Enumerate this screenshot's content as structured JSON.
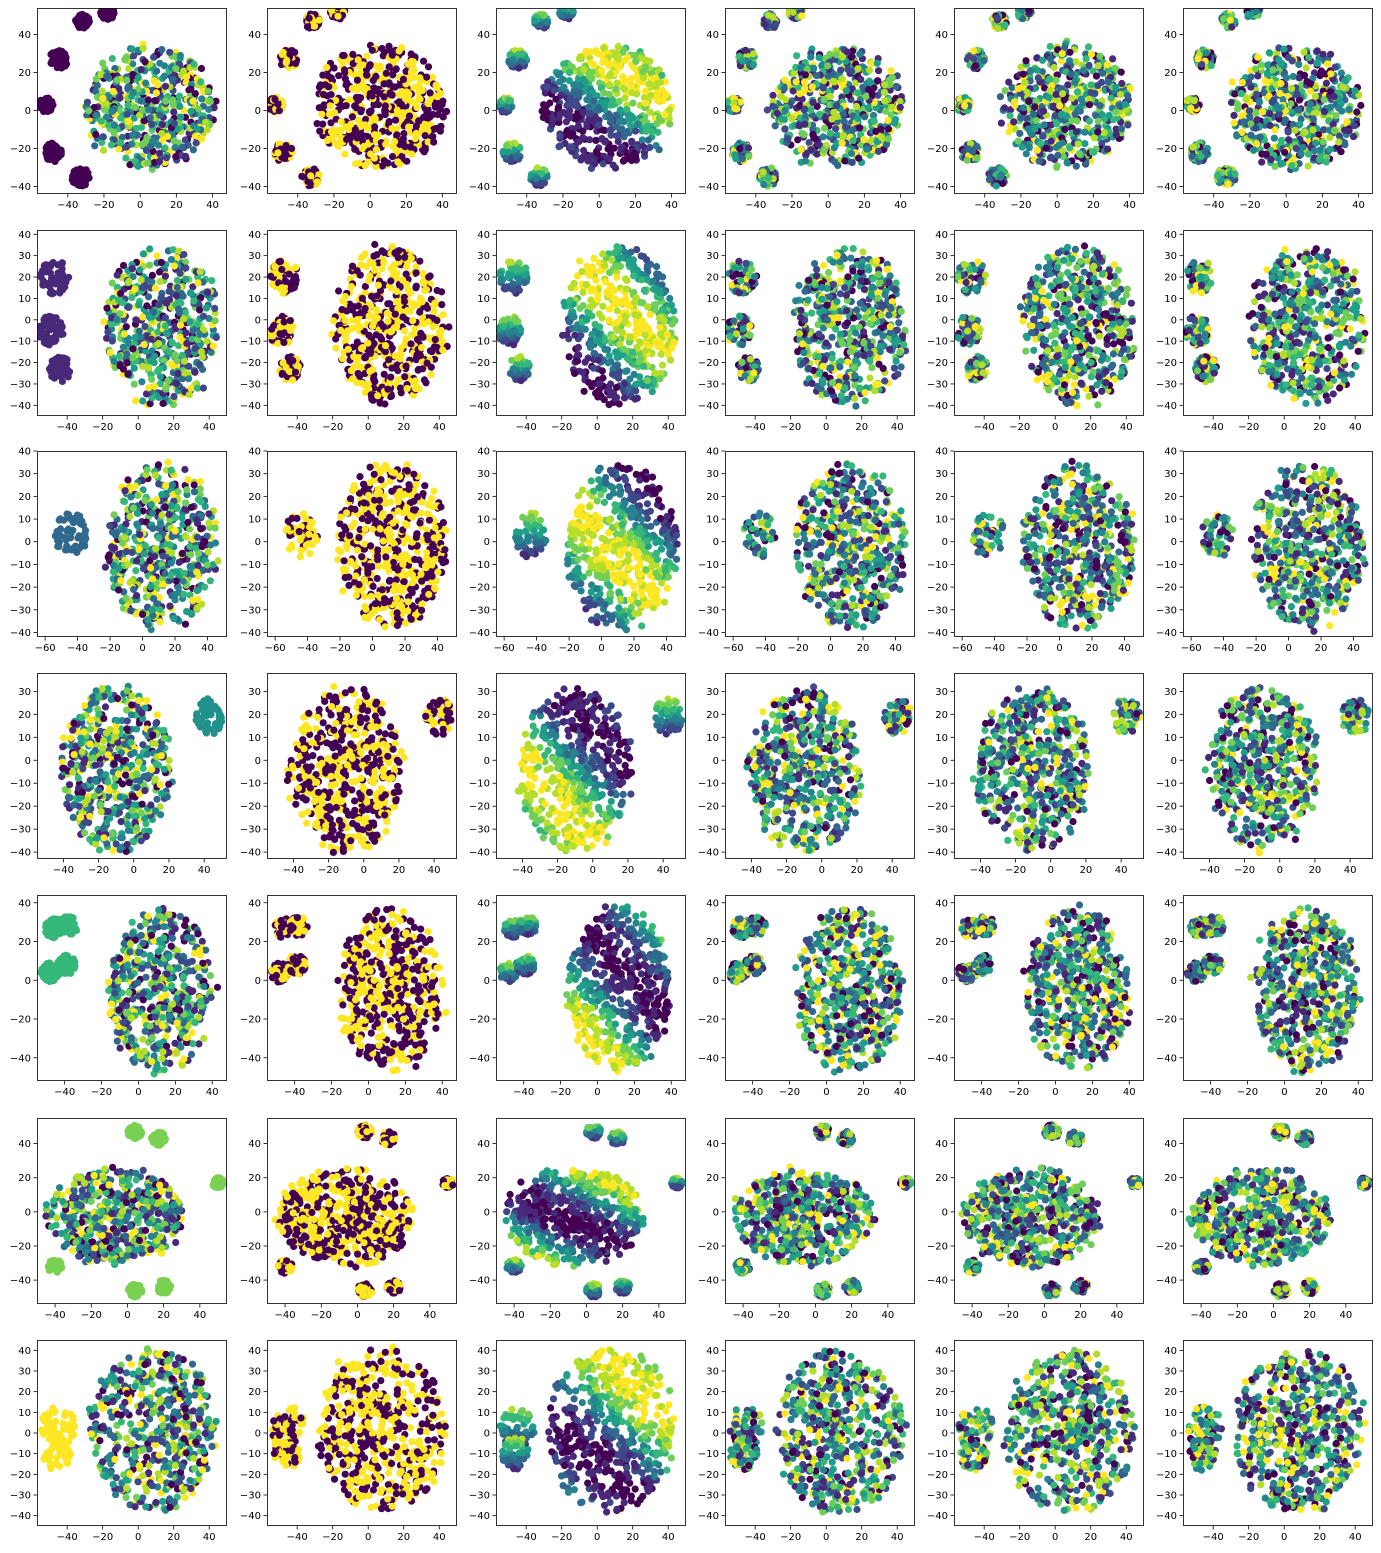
{
  "chart_data": [
    {
      "type": "scatter",
      "row": 1,
      "panel": 1,
      "xlim": [
        -57,
        48
      ],
      "ylim": [
        -44,
        54
      ],
      "xticks": [
        -40,
        -20,
        0,
        20,
        40
      ],
      "yticks": [
        -40,
        -20,
        0,
        20,
        40
      ],
      "colors": "viridis-mixed"
    },
    {
      "type": "scatter",
      "row": 1,
      "panel": 2,
      "xlim": [
        -57,
        48
      ],
      "ylim": [
        -44,
        54
      ],
      "xticks": [
        -40,
        -20,
        0,
        20,
        40
      ],
      "yticks": [
        -40,
        -20,
        0,
        20,
        40
      ],
      "colors": "binary"
    },
    {
      "type": "scatter",
      "row": 1,
      "panel": 3,
      "xlim": [
        -57,
        48
      ],
      "ylim": [
        -44,
        54
      ],
      "xticks": [
        -40,
        -20,
        0,
        20,
        40
      ],
      "yticks": [
        -40,
        -20,
        0,
        20,
        40
      ],
      "colors": "viridis-gradient"
    },
    {
      "type": "scatter",
      "row": 1,
      "panel": 4,
      "xlim": [
        -57,
        48
      ],
      "ylim": [
        -44,
        54
      ],
      "xticks": [
        -40,
        -20,
        0,
        20,
        40
      ],
      "yticks": [
        -40,
        -20,
        0,
        20,
        40
      ],
      "colors": "viridis-mixed"
    },
    {
      "type": "scatter",
      "row": 1,
      "panel": 5,
      "xlim": [
        -57,
        48
      ],
      "ylim": [
        -44,
        54
      ],
      "xticks": [
        -40,
        -20,
        0,
        20,
        40
      ],
      "yticks": [
        -40,
        -20,
        0,
        20,
        40
      ],
      "colors": "viridis-mixed"
    },
    {
      "type": "scatter",
      "row": 1,
      "panel": 6,
      "xlim": [
        -57,
        48
      ],
      "ylim": [
        -44,
        54
      ],
      "xticks": [
        -40,
        -20,
        0,
        20,
        40
      ],
      "yticks": [
        -40,
        -20,
        0,
        20,
        40
      ],
      "colors": "viridis-mixed"
    },
    {
      "type": "scatter",
      "row": 2,
      "panel": 1,
      "xlim": [
        -57,
        50
      ],
      "ylim": [
        -45,
        42
      ],
      "xticks": [
        -40,
        -20,
        0,
        20,
        40
      ],
      "yticks": [
        -40,
        -30,
        -20,
        -10,
        0,
        10,
        20,
        30,
        40
      ],
      "colors": "viridis-mixed"
    },
    {
      "type": "scatter",
      "row": 2,
      "panel": 2,
      "xlim": [
        -57,
        50
      ],
      "ylim": [
        -45,
        42
      ],
      "xticks": [
        -40,
        -20,
        0,
        20,
        40
      ],
      "yticks": [
        -40,
        -30,
        -20,
        -10,
        0,
        10,
        20,
        30,
        40
      ],
      "colors": "binary"
    },
    {
      "type": "scatter",
      "row": 2,
      "panel": 3,
      "xlim": [
        -57,
        50
      ],
      "ylim": [
        -45,
        42
      ],
      "xticks": [
        -40,
        -20,
        0,
        20,
        40
      ],
      "yticks": [
        -40,
        -30,
        -20,
        -10,
        0,
        10,
        20,
        30,
        40
      ],
      "colors": "viridis-gradient"
    },
    {
      "type": "scatter",
      "row": 2,
      "panel": 4,
      "xlim": [
        -57,
        50
      ],
      "ylim": [
        -45,
        42
      ],
      "xticks": [
        -40,
        -20,
        0,
        20,
        40
      ],
      "yticks": [
        -40,
        -30,
        -20,
        -10,
        0,
        10,
        20,
        30,
        40
      ],
      "colors": "viridis-mixed"
    },
    {
      "type": "scatter",
      "row": 2,
      "panel": 5,
      "xlim": [
        -57,
        50
      ],
      "ylim": [
        -45,
        42
      ],
      "xticks": [
        -40,
        -20,
        0,
        20,
        40
      ],
      "yticks": [
        -40,
        -30,
        -20,
        -10,
        0,
        10,
        20,
        30,
        40
      ],
      "colors": "viridis-mixed"
    },
    {
      "type": "scatter",
      "row": 2,
      "panel": 6,
      "xlim": [
        -57,
        50
      ],
      "ylim": [
        -45,
        42
      ],
      "xticks": [
        -40,
        -20,
        0,
        20,
        40
      ],
      "yticks": [
        -40,
        -30,
        -20,
        -10,
        0,
        10,
        20,
        30,
        40
      ],
      "colors": "viridis-mixed"
    },
    {
      "type": "scatter",
      "row": 3,
      "panel": 1,
      "xlim": [
        -65,
        52
      ],
      "ylim": [
        -42,
        40
      ],
      "xticks": [
        -60,
        -40,
        -20,
        0,
        20,
        40
      ],
      "yticks": [
        -40,
        -30,
        -20,
        -10,
        0,
        10,
        20,
        30,
        40
      ],
      "colors": "viridis-mixed"
    },
    {
      "type": "scatter",
      "row": 3,
      "panel": 2,
      "xlim": [
        -65,
        52
      ],
      "ylim": [
        -42,
        40
      ],
      "xticks": [
        -60,
        -40,
        -20,
        0,
        20,
        40
      ],
      "yticks": [
        -40,
        -30,
        -20,
        -10,
        0,
        10,
        20,
        30,
        40
      ],
      "colors": "binary"
    },
    {
      "type": "scatter",
      "row": 3,
      "panel": 3,
      "xlim": [
        -65,
        52
      ],
      "ylim": [
        -42,
        40
      ],
      "xticks": [
        -60,
        -40,
        -20,
        0,
        20,
        40
      ],
      "yticks": [
        -40,
        -30,
        -20,
        -10,
        0,
        10,
        20,
        30,
        40
      ],
      "colors": "viridis-gradient"
    },
    {
      "type": "scatter",
      "row": 3,
      "panel": 4,
      "xlim": [
        -65,
        52
      ],
      "ylim": [
        -42,
        40
      ],
      "xticks": [
        -60,
        -40,
        -20,
        0,
        20,
        40
      ],
      "yticks": [
        -40,
        -30,
        -20,
        -10,
        0,
        10,
        20,
        30,
        40
      ],
      "colors": "viridis-mixed"
    },
    {
      "type": "scatter",
      "row": 3,
      "panel": 5,
      "xlim": [
        -65,
        52
      ],
      "ylim": [
        -42,
        40
      ],
      "xticks": [
        -60,
        -40,
        -20,
        0,
        20,
        40
      ],
      "yticks": [
        -40,
        -30,
        -20,
        -10,
        0,
        10,
        20,
        30,
        40
      ],
      "colors": "viridis-mixed"
    },
    {
      "type": "scatter",
      "row": 3,
      "panel": 6,
      "xlim": [
        -65,
        52
      ],
      "ylim": [
        -42,
        40
      ],
      "xticks": [
        -60,
        -40,
        -20,
        0,
        20,
        40
      ],
      "yticks": [
        -40,
        -30,
        -20,
        -10,
        0,
        10,
        20,
        30,
        40
      ],
      "colors": "viridis-mixed"
    },
    {
      "type": "scatter",
      "row": 4,
      "panel": 1,
      "xlim": [
        -55,
        53
      ],
      "ylim": [
        -43,
        38
      ],
      "xticks": [
        -40,
        -20,
        0,
        20,
        40
      ],
      "yticks": [
        -40,
        -30,
        -20,
        -10,
        0,
        10,
        20,
        30
      ],
      "colors": "viridis-mixed"
    },
    {
      "type": "scatter",
      "row": 4,
      "panel": 2,
      "xlim": [
        -55,
        53
      ],
      "ylim": [
        -43,
        38
      ],
      "xticks": [
        -40,
        -20,
        0,
        20,
        40
      ],
      "yticks": [
        -40,
        -30,
        -20,
        -10,
        0,
        10,
        20,
        30
      ],
      "colors": "binary"
    },
    {
      "type": "scatter",
      "row": 4,
      "panel": 3,
      "xlim": [
        -55,
        53
      ],
      "ylim": [
        -43,
        38
      ],
      "xticks": [
        -40,
        -20,
        0,
        20,
        40
      ],
      "yticks": [
        -40,
        -30,
        -20,
        -10,
        0,
        10,
        20,
        30
      ],
      "colors": "viridis-gradient"
    },
    {
      "type": "scatter",
      "row": 4,
      "panel": 4,
      "xlim": [
        -55,
        53
      ],
      "ylim": [
        -43,
        38
      ],
      "xticks": [
        -40,
        -20,
        0,
        20,
        40
      ],
      "yticks": [
        -40,
        -30,
        -20,
        -10,
        0,
        10,
        20,
        30
      ],
      "colors": "viridis-mixed"
    },
    {
      "type": "scatter",
      "row": 4,
      "panel": 5,
      "xlim": [
        -55,
        53
      ],
      "ylim": [
        -43,
        38
      ],
      "xticks": [
        -40,
        -20,
        0,
        20,
        40
      ],
      "yticks": [
        -40,
        -30,
        -20,
        -10,
        0,
        10,
        20,
        30
      ],
      "colors": "viridis-mixed"
    },
    {
      "type": "scatter",
      "row": 4,
      "panel": 6,
      "xlim": [
        -55,
        53
      ],
      "ylim": [
        -43,
        38
      ],
      "xticks": [
        -40,
        -20,
        0,
        20,
        40
      ],
      "yticks": [
        -40,
        -30,
        -20,
        -10,
        0,
        10,
        20,
        30
      ],
      "colors": "viridis-mixed"
    },
    {
      "type": "scatter",
      "row": 5,
      "panel": 1,
      "xlim": [
        -55,
        48
      ],
      "ylim": [
        -52,
        44
      ],
      "xticks": [
        -40,
        -20,
        0,
        20,
        40
      ],
      "yticks": [
        -40,
        -20,
        0,
        20,
        40
      ],
      "colors": "viridis-mixed"
    },
    {
      "type": "scatter",
      "row": 5,
      "panel": 2,
      "xlim": [
        -55,
        48
      ],
      "ylim": [
        -52,
        44
      ],
      "xticks": [
        -40,
        -20,
        0,
        20,
        40
      ],
      "yticks": [
        -40,
        -20,
        0,
        20,
        40
      ],
      "colors": "binary"
    },
    {
      "type": "scatter",
      "row": 5,
      "panel": 3,
      "xlim": [
        -55,
        48
      ],
      "ylim": [
        -52,
        44
      ],
      "xticks": [
        -40,
        -20,
        0,
        20,
        40
      ],
      "yticks": [
        -40,
        -20,
        0,
        20,
        40
      ],
      "colors": "viridis-gradient"
    },
    {
      "type": "scatter",
      "row": 5,
      "panel": 4,
      "xlim": [
        -55,
        48
      ],
      "ylim": [
        -52,
        44
      ],
      "xticks": [
        -40,
        -20,
        0,
        20,
        40
      ],
      "yticks": [
        -40,
        -20,
        0,
        20,
        40
      ],
      "colors": "viridis-mixed"
    },
    {
      "type": "scatter",
      "row": 5,
      "panel": 5,
      "xlim": [
        -55,
        48
      ],
      "ylim": [
        -52,
        44
      ],
      "xticks": [
        -40,
        -20,
        0,
        20,
        40
      ],
      "yticks": [
        -40,
        -20,
        0,
        20,
        40
      ],
      "colors": "viridis-mixed"
    },
    {
      "type": "scatter",
      "row": 5,
      "panel": 6,
      "xlim": [
        -55,
        48
      ],
      "ylim": [
        -52,
        44
      ],
      "xticks": [
        -40,
        -20,
        0,
        20,
        40
      ],
      "yticks": [
        -40,
        -20,
        0,
        20,
        40
      ],
      "colors": "viridis-mixed"
    },
    {
      "type": "scatter",
      "row": 6,
      "panel": 1,
      "xlim": [
        -50,
        55
      ],
      "ylim": [
        -54,
        55
      ],
      "xticks": [
        -40,
        -20,
        0,
        20,
        40
      ],
      "yticks": [
        -40,
        -20,
        0,
        20,
        40
      ],
      "colors": "viridis-mixed"
    },
    {
      "type": "scatter",
      "row": 6,
      "panel": 2,
      "xlim": [
        -50,
        55
      ],
      "ylim": [
        -54,
        55
      ],
      "xticks": [
        -40,
        -20,
        0,
        20,
        40
      ],
      "yticks": [
        -40,
        -20,
        0,
        20,
        40
      ],
      "colors": "binary"
    },
    {
      "type": "scatter",
      "row": 6,
      "panel": 3,
      "xlim": [
        -50,
        55
      ],
      "ylim": [
        -54,
        55
      ],
      "xticks": [
        -40,
        -20,
        0,
        20,
        40
      ],
      "yticks": [
        -40,
        -20,
        0,
        20,
        40
      ],
      "colors": "viridis-gradient"
    },
    {
      "type": "scatter",
      "row": 6,
      "panel": 4,
      "xlim": [
        -50,
        55
      ],
      "ylim": [
        -54,
        55
      ],
      "xticks": [
        -40,
        -20,
        0,
        20,
        40
      ],
      "yticks": [
        -40,
        -20,
        0,
        20,
        40
      ],
      "colors": "viridis-mixed"
    },
    {
      "type": "scatter",
      "row": 6,
      "panel": 5,
      "xlim": [
        -50,
        55
      ],
      "ylim": [
        -54,
        55
      ],
      "xticks": [
        -40,
        -20,
        0,
        20,
        40
      ],
      "yticks": [
        -40,
        -20,
        0,
        20,
        40
      ],
      "colors": "viridis-mixed"
    },
    {
      "type": "scatter",
      "row": 6,
      "panel": 6,
      "xlim": [
        -50,
        55
      ],
      "ylim": [
        -54,
        55
      ],
      "xticks": [
        -40,
        -20,
        0,
        20,
        40
      ],
      "yticks": [
        -40,
        -20,
        0,
        20,
        40
      ],
      "colors": "viridis-mixed"
    },
    {
      "type": "scatter",
      "row": 7,
      "panel": 1,
      "xlim": [
        -57,
        50
      ],
      "ylim": [
        -45,
        45
      ],
      "xticks": [
        -40,
        -20,
        0,
        20,
        40
      ],
      "yticks": [
        -40,
        -30,
        -20,
        -10,
        0,
        10,
        20,
        30,
        40
      ],
      "colors": "viridis-mixed"
    },
    {
      "type": "scatter",
      "row": 7,
      "panel": 2,
      "xlim": [
        -57,
        50
      ],
      "ylim": [
        -45,
        45
      ],
      "xticks": [
        -40,
        -20,
        0,
        20,
        40
      ],
      "yticks": [
        -40,
        -30,
        -20,
        -10,
        0,
        10,
        20,
        30,
        40
      ],
      "colors": "binary"
    },
    {
      "type": "scatter",
      "row": 7,
      "panel": 3,
      "xlim": [
        -57,
        50
      ],
      "ylim": [
        -45,
        45
      ],
      "xticks": [
        -40,
        -20,
        0,
        20,
        40
      ],
      "yticks": [
        -40,
        -30,
        -20,
        -10,
        0,
        10,
        20,
        30,
        40
      ],
      "colors": "viridis-gradient"
    },
    {
      "type": "scatter",
      "row": 7,
      "panel": 4,
      "xlim": [
        -57,
        50
      ],
      "ylim": [
        -45,
        45
      ],
      "xticks": [
        -40,
        -20,
        0,
        20,
        40
      ],
      "yticks": [
        -40,
        -30,
        -20,
        -10,
        0,
        10,
        20,
        30,
        40
      ],
      "colors": "viridis-mixed"
    },
    {
      "type": "scatter",
      "row": 7,
      "panel": 5,
      "xlim": [
        -57,
        50
      ],
      "ylim": [
        -45,
        45
      ],
      "xticks": [
        -40,
        -20,
        0,
        20,
        40
      ],
      "yticks": [
        -40,
        -30,
        -20,
        -10,
        0,
        10,
        20,
        30,
        40
      ],
      "colors": "viridis-mixed"
    },
    {
      "type": "scatter",
      "row": 7,
      "panel": 6,
      "xlim": [
        -57,
        50
      ],
      "ylim": [
        -45,
        45
      ],
      "xticks": [
        -40,
        -20,
        0,
        20,
        40
      ],
      "yticks": [
        -40,
        -30,
        -20,
        -10,
        0,
        10,
        20,
        30,
        40
      ],
      "colors": "viridis-mixed"
    }
  ],
  "palette": {
    "viridis": [
      "#440154",
      "#482878",
      "#3e4989",
      "#31688e",
      "#26828e",
      "#1f9e89",
      "#35b779",
      "#6ece58",
      "#b5de2b",
      "#fde725"
    ],
    "binary": [
      "#440154",
      "#fde725"
    ],
    "axes_edge": "#000000",
    "background": "#ffffff"
  }
}
